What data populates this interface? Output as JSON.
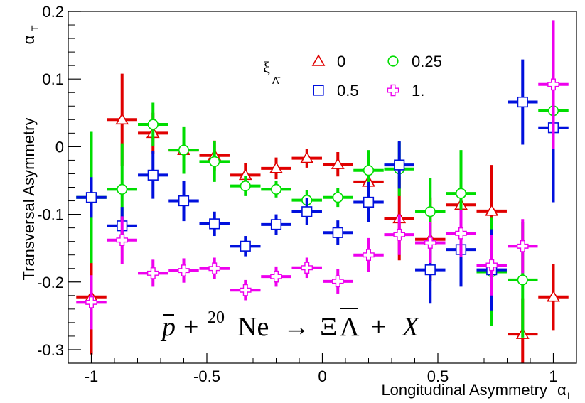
{
  "chart_data": {
    "type": "scatter",
    "xlabel": "Longitudinal Asymmetry",
    "xlabel_symbol": "α",
    "xlabel_sub": "L",
    "ylabel": "Transversal Asymmetry",
    "ylabel_symbol": "α",
    "ylabel_sub": "T",
    "xlim": [
      -1.1,
      1.1
    ],
    "ylim": [
      -0.32,
      0.2
    ],
    "xticks": [
      -1,
      -0.5,
      0,
      0.5,
      1
    ],
    "xtick_labels": [
      "-1",
      "-0.5",
      "0",
      "0.5",
      "1"
    ],
    "yticks": [
      -0.3,
      -0.2,
      -0.1,
      0,
      0.1,
      0.2
    ],
    "ytick_labels": [
      "-0.3",
      "-0.2",
      "-0.1",
      "0",
      "0.1",
      "0.2"
    ],
    "grid": false,
    "legend_title": "ξ",
    "legend_title_sub": "Λ̄",
    "legend_position": "top-right",
    "annotation": {
      "p": "p",
      "plus": "+",
      "mass": "20",
      "ne": "Ne",
      "arrow": "→",
      "xi": "Ξ",
      "lambda": "Λ",
      "plus2": "+",
      "x": "X"
    },
    "x": [
      -1,
      -0.867,
      -0.733,
      -0.6,
      -0.467,
      -0.333,
      -0.2,
      -0.067,
      0.067,
      0.2,
      0.333,
      0.467,
      0.6,
      0.733,
      0.867,
      1
    ],
    "series": [
      {
        "name": "0",
        "marker": "triangle",
        "color": "#e00000",
        "y": [
          -0.222,
          0.04,
          0.02,
          -0.005,
          -0.013,
          -0.042,
          -0.032,
          -0.017,
          -0.026,
          -0.052,
          -0.106,
          -0.137,
          -0.086,
          -0.095,
          -0.277,
          -0.222
        ],
        "yerr": [
          0.085,
          0.068,
          0.03,
          0.025,
          0.022,
          0.018,
          0.016,
          0.014,
          0.018,
          0.022,
          0.062,
          0.062,
          0.064,
          0.068,
          0.053,
          0.049
        ]
      },
      {
        "name": "0.25",
        "marker": "circle",
        "color": "#00dd00",
        "y": [
          -0.075,
          -0.063,
          0.033,
          -0.005,
          -0.022,
          -0.058,
          -0.063,
          -0.079,
          -0.075,
          -0.035,
          -0.033,
          -0.096,
          -0.069,
          -0.185,
          -0.197,
          0.053
        ],
        "yerr": [
          0.097,
          0.068,
          0.032,
          0.035,
          0.03,
          0.015,
          0.012,
          0.015,
          0.014,
          0.03,
          0.04,
          0.05,
          0.064,
          0.08,
          0.085,
          0.13
        ]
      },
      {
        "name": "0.5",
        "marker": "square",
        "color": "#0010dd",
        "y": [
          -0.075,
          -0.117,
          -0.042,
          -0.08,
          -0.114,
          -0.147,
          -0.115,
          -0.096,
          -0.127,
          -0.082,
          -0.027,
          -0.182,
          -0.152,
          -0.182,
          0.066,
          0.028
        ],
        "yerr": [
          0.03,
          0.028,
          0.035,
          0.03,
          0.018,
          0.015,
          0.015,
          0.02,
          0.018,
          0.03,
          0.035,
          0.05,
          0.055,
          0.06,
          0.063,
          0.11
        ]
      },
      {
        "name": "1.",
        "marker": "cross",
        "color": "#ee00ee",
        "y": [
          -0.23,
          -0.138,
          -0.187,
          -0.183,
          -0.18,
          -0.212,
          -0.192,
          -0.179,
          -0.199,
          -0.16,
          -0.13,
          -0.142,
          -0.128,
          -0.175,
          -0.147,
          0.092
        ],
        "yerr": [
          0.04,
          0.035,
          0.02,
          0.018,
          0.016,
          0.015,
          0.015,
          0.015,
          0.018,
          0.025,
          0.03,
          0.03,
          0.035,
          0.045,
          0.04,
          0.095
        ]
      }
    ]
  }
}
